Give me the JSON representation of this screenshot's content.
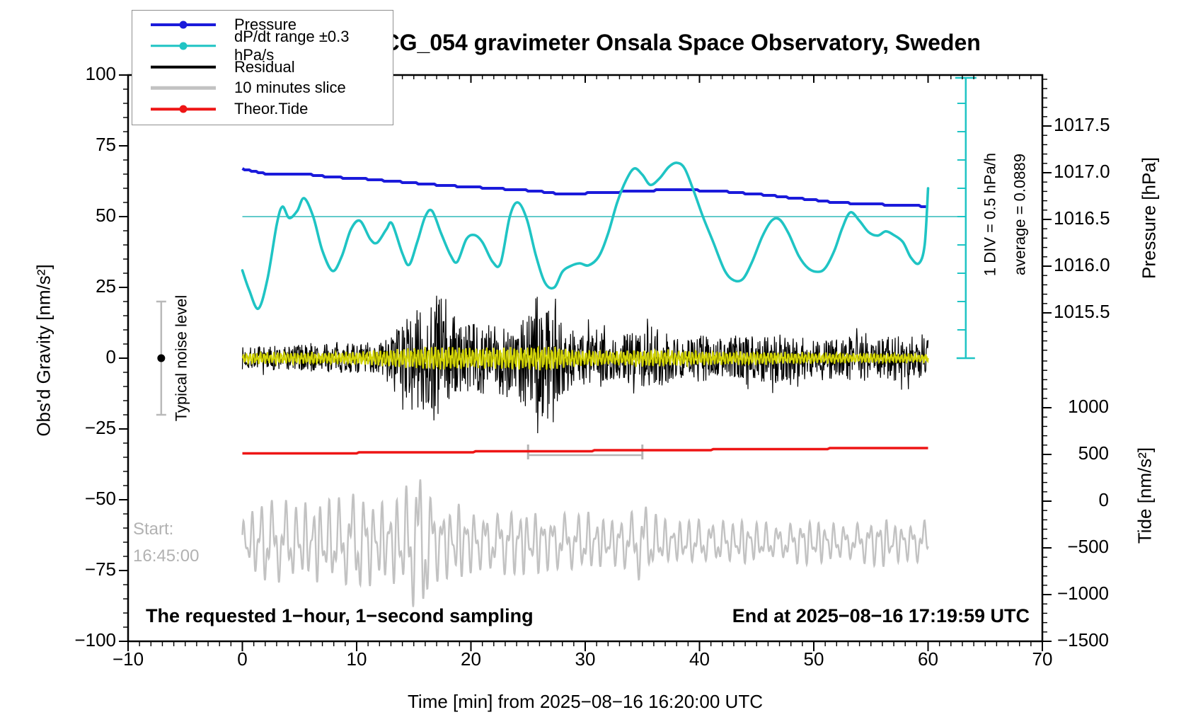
{
  "header": {
    "title": "SCG_054 gravimeter Onsala Space Observatory, Sweden"
  },
  "legend": {
    "items": [
      {
        "label": "Pressure",
        "color": "#1b1bdb",
        "marker": "dot",
        "thick": 4
      },
      {
        "label": "dP/dt range ±0.3 hPa/s",
        "color": "#1fc4c4",
        "marker": "dot",
        "thick": 3.5
      },
      {
        "label": "Residual",
        "color": "#000000",
        "marker": "line",
        "thick": 4.5
      },
      {
        "label": "10 minutes slice",
        "color": "#c2c2c2",
        "marker": "line",
        "thick": 4.5
      },
      {
        "label": "Theor.Tide",
        "color": "#ee1515",
        "marker": "dot",
        "thick": 3.5
      }
    ]
  },
  "annotations": {
    "start_line1": "Start:",
    "start_line2": "16:45:00",
    "sampling_note": "The requested 1−hour, 1−second sampling",
    "end_note": "End at 2025−08−16 17:19:59 UTC",
    "noise_label": "Typical noise level",
    "div_label": "1 DIV = 0.5 hPa/h",
    "average_label": "average = 0.0889"
  },
  "axes": {
    "left": {
      "title": "Obs'd Gravity [nm/s²]",
      "range": [
        -100,
        100
      ],
      "minor_step": 5,
      "ticks": [
        {
          "v": 100,
          "label": "100"
        },
        {
          "v": 75,
          "label": "75"
        },
        {
          "v": 50,
          "label": "50"
        },
        {
          "v": 25,
          "label": "25"
        },
        {
          "v": 0,
          "label": "0"
        },
        {
          "v": -25,
          "label": "−25"
        },
        {
          "v": -50,
          "label": "−50"
        },
        {
          "v": -75,
          "label": "−75"
        },
        {
          "v": -100,
          "label": "−100"
        }
      ]
    },
    "bottom": {
      "title": "Time [min] from 2025−08−16 16:20:00 UTC",
      "range": [
        -10,
        70
      ],
      "minor_step": 1,
      "ticks": [
        {
          "v": -10,
          "label": "−10"
        },
        {
          "v": 0,
          "label": "0"
        },
        {
          "v": 10,
          "label": "10"
        },
        {
          "v": 20,
          "label": "20"
        },
        {
          "v": 30,
          "label": "30"
        },
        {
          "v": 40,
          "label": "40"
        },
        {
          "v": 50,
          "label": "50"
        },
        {
          "v": 60,
          "label": "60"
        },
        {
          "v": 70,
          "label": "70"
        }
      ]
    },
    "pressure": {
      "title": "Pressure [hPa]",
      "minor_step": 0.1,
      "ticks": [
        {
          "v": 1017.5,
          "label": "1017.5"
        },
        {
          "v": 1017.0,
          "label": "1017.0"
        },
        {
          "v": 1016.5,
          "label": "1016.5"
        },
        {
          "v": 1016.0,
          "label": "1016.0"
        },
        {
          "v": 1015.5,
          "label": "1015.5"
        }
      ]
    },
    "tide": {
      "title": "Tide [nm/s²]",
      "minor_step": 100,
      "ticks": [
        {
          "v": 1000,
          "label": "1000"
        },
        {
          "v": 500,
          "label": "500"
        },
        {
          "v": 0,
          "label": "0"
        },
        {
          "v": -500,
          "label": "−500"
        },
        {
          "v": -1000,
          "label": "−1000"
        },
        {
          "v": -1500,
          "label": "−1500"
        }
      ]
    }
  },
  "chart_data": {
    "type": "line",
    "title": "SCG_054 gravimeter Onsala Space Observatory, Sweden",
    "xlabel": "Time [min] from 2025−08−16 16:20:00 UTC",
    "x_range_min": [
      -10,
      70
    ],
    "left_axis_range_nm_s2": [
      -100,
      100
    ],
    "pressure_axis_range_hPa": [
      1015.2,
      1018.0
    ],
    "tide_axis_range_nm_s2": [
      -1500,
      1500
    ],
    "colors": {
      "pressure": "#1b1bdb",
      "dpdt": "#1fc4c4",
      "dpdt_ref": "#63cbcb",
      "residual": "#000000",
      "residual_smooth": "#d2d405",
      "slice": "#c2c2c2",
      "tide": "#ee1515",
      "noise_bar": "#b9b9b9",
      "slice_bracket": "#b5b5b5"
    },
    "series": [
      {
        "name": "Pressure",
        "axis": "pressure_hPa",
        "points": [
          [
            0,
            1017.04
          ],
          [
            2,
            1016.99
          ],
          [
            4,
            1016.98
          ],
          [
            6,
            1016.98
          ],
          [
            8,
            1016.95
          ],
          [
            10,
            1016.94
          ],
          [
            12,
            1016.92
          ],
          [
            14,
            1016.9
          ],
          [
            16,
            1016.88
          ],
          [
            18,
            1016.86
          ],
          [
            20,
            1016.85
          ],
          [
            22,
            1016.83
          ],
          [
            24,
            1016.82
          ],
          [
            26,
            1016.8
          ],
          [
            28,
            1016.77
          ],
          [
            30,
            1016.78
          ],
          [
            32,
            1016.79
          ],
          [
            34,
            1016.8
          ],
          [
            36,
            1016.81
          ],
          [
            38,
            1016.82
          ],
          [
            40,
            1016.81
          ],
          [
            42,
            1016.8
          ],
          [
            44,
            1016.78
          ],
          [
            46,
            1016.76
          ],
          [
            48,
            1016.73
          ],
          [
            50,
            1016.71
          ],
          [
            52,
            1016.68
          ],
          [
            54,
            1016.67
          ],
          [
            56,
            1016.66
          ],
          [
            58,
            1016.65
          ],
          [
            60,
            1016.64
          ]
        ]
      },
      {
        "name": "dP/dt range ±0.3 hPa/s",
        "axis": "display_left_units",
        "note": "reference line at 50 display units = average 0.0889 hPa/h, 1 DIV (10 units) = 0.5 hPa/h",
        "reference_line_display": 50,
        "points": [
          [
            0,
            31
          ],
          [
            0.6,
            24
          ],
          [
            1.4,
            17.5
          ],
          [
            2.2,
            28
          ],
          [
            3,
            47
          ],
          [
            3.5,
            53.5
          ],
          [
            4.1,
            49.5
          ],
          [
            4.8,
            52
          ],
          [
            5.4,
            56.5
          ],
          [
            6.2,
            50
          ],
          [
            7,
            38
          ],
          [
            7.9,
            30.8
          ],
          [
            8.7,
            36
          ],
          [
            9.5,
            45.5
          ],
          [
            10.3,
            48.5
          ],
          [
            11.2,
            42
          ],
          [
            11.8,
            40.8
          ],
          [
            12.6,
            45.5
          ],
          [
            13.1,
            47.5
          ],
          [
            14,
            37
          ],
          [
            14.6,
            33
          ],
          [
            15.3,
            41
          ],
          [
            16,
            50
          ],
          [
            16.6,
            52
          ],
          [
            17.4,
            44
          ],
          [
            18.2,
            36.5
          ],
          [
            18.8,
            34
          ],
          [
            19.6,
            42
          ],
          [
            20.3,
            43.5
          ],
          [
            21,
            41
          ],
          [
            21.9,
            34
          ],
          [
            22.6,
            33.6
          ],
          [
            23.4,
            50
          ],
          [
            24.1,
            55
          ],
          [
            24.9,
            49
          ],
          [
            25.7,
            36
          ],
          [
            26.5,
            26.5
          ],
          [
            27.3,
            25
          ],
          [
            28,
            30.5
          ],
          [
            28.7,
            32.5
          ],
          [
            29.5,
            33.5
          ],
          [
            30.3,
            32.8
          ],
          [
            31.2,
            36
          ],
          [
            32,
            44
          ],
          [
            32.8,
            55
          ],
          [
            33.6,
            63
          ],
          [
            34.3,
            67
          ],
          [
            35,
            64.8
          ],
          [
            35.7,
            61.2
          ],
          [
            36.5,
            63.5
          ],
          [
            37.3,
            67.5
          ],
          [
            38,
            69
          ],
          [
            38.7,
            67
          ],
          [
            39.5,
            59
          ],
          [
            40.3,
            50
          ],
          [
            41.2,
            41
          ],
          [
            42.2,
            31
          ],
          [
            43,
            27.5
          ],
          [
            43.8,
            28
          ],
          [
            44.6,
            34
          ],
          [
            45.5,
            43
          ],
          [
            46.3,
            48.5
          ],
          [
            47,
            49
          ],
          [
            47.8,
            44
          ],
          [
            48.7,
            36
          ],
          [
            49.5,
            31.8
          ],
          [
            50.3,
            30.5
          ],
          [
            51,
            31.8
          ],
          [
            51.8,
            38
          ],
          [
            52.5,
            46
          ],
          [
            53.2,
            51.5
          ],
          [
            54,
            48.5
          ],
          [
            54.8,
            44.5
          ],
          [
            55.6,
            43.3
          ],
          [
            56.3,
            44.8
          ],
          [
            57,
            43.5
          ],
          [
            57.8,
            41
          ],
          [
            58.5,
            35.5
          ],
          [
            59.2,
            33.5
          ],
          [
            59.7,
            40
          ],
          [
            60,
            60
          ]
        ]
      },
      {
        "name": "Residual",
        "axis": "left_nm_s2",
        "baseline": 0,
        "amplitude_envelope": [
          [
            0,
            4
          ],
          [
            3,
            4.5
          ],
          [
            6,
            5
          ],
          [
            9,
            5
          ],
          [
            12,
            6
          ],
          [
            13,
            8
          ],
          [
            14,
            13
          ],
          [
            15,
            16
          ],
          [
            16,
            20
          ],
          [
            17,
            26
          ],
          [
            17.8,
            23
          ],
          [
            18.5,
            15
          ],
          [
            19.5,
            12
          ],
          [
            21,
            13
          ],
          [
            22,
            12
          ],
          [
            23,
            14
          ],
          [
            24,
            15
          ],
          [
            25,
            18
          ],
          [
            25.8,
            22
          ],
          [
            26.5,
            20
          ],
          [
            27.3,
            25
          ],
          [
            28,
            13
          ],
          [
            29,
            10
          ],
          [
            30,
            11
          ],
          [
            31,
            9
          ],
          [
            32.5,
            8
          ],
          [
            34,
            9
          ],
          [
            35,
            10
          ],
          [
            36,
            12
          ],
          [
            37,
            9
          ],
          [
            38,
            8
          ],
          [
            40,
            8.5
          ],
          [
            41.5,
            7
          ],
          [
            43,
            8
          ],
          [
            45,
            8
          ],
          [
            46.5,
            9
          ],
          [
            48,
            8
          ],
          [
            50,
            8
          ],
          [
            52,
            7.5
          ],
          [
            54,
            8
          ],
          [
            56,
            8
          ],
          [
            58,
            8
          ],
          [
            60,
            7
          ]
        ]
      },
      {
        "name": "Residual smoothed (yellow)",
        "axis": "left_nm_s2",
        "baseline": 0,
        "amplitude_envelope": [
          [
            0,
            1.5
          ],
          [
            10,
            1.8
          ],
          [
            13,
            2.5
          ],
          [
            15,
            3
          ],
          [
            17,
            3.5
          ],
          [
            20,
            3
          ],
          [
            24,
            3.2
          ],
          [
            27,
            3.5
          ],
          [
            29,
            2.5
          ],
          [
            32,
            2
          ],
          [
            36,
            2.5
          ],
          [
            40,
            2
          ],
          [
            45,
            1.8
          ],
          [
            50,
            1.5
          ],
          [
            55,
            1.3
          ],
          [
            60,
            1.2
          ]
        ]
      },
      {
        "name": "Theor.Tide",
        "axis": "tide_nm_s2",
        "points": [
          [
            0,
            506
          ],
          [
            10,
            517
          ],
          [
            20,
            528
          ],
          [
            30,
            539
          ],
          [
            40,
            550
          ],
          [
            50,
            561
          ],
          [
            60,
            572
          ]
        ],
        "slice_window_markers_min": [
          25,
          35
        ]
      },
      {
        "name": "10 minutes slice",
        "axis": "left_nm_s2",
        "baseline": -65,
        "amplitude_envelope": [
          [
            0,
            8
          ],
          [
            1,
            10
          ],
          [
            2,
            14
          ],
          [
            3,
            12
          ],
          [
            4,
            13
          ],
          [
            5,
            11
          ],
          [
            6,
            13
          ],
          [
            7,
            12
          ],
          [
            8,
            14
          ],
          [
            9,
            13
          ],
          [
            10,
            17
          ],
          [
            11,
            14
          ],
          [
            12,
            12
          ],
          [
            13,
            13
          ],
          [
            14,
            15
          ],
          [
            15,
            22
          ],
          [
            15.8,
            25
          ],
          [
            16.5,
            16
          ],
          [
            17,
            12
          ],
          [
            18,
            11
          ],
          [
            19,
            12
          ],
          [
            20,
            10
          ],
          [
            21,
            9
          ],
          [
            22,
            9
          ],
          [
            23,
            10
          ],
          [
            24,
            11
          ],
          [
            25,
            9
          ],
          [
            26,
            10
          ],
          [
            27,
            8
          ],
          [
            28,
            9
          ],
          [
            29,
            8
          ],
          [
            30,
            10
          ],
          [
            31,
            8
          ],
          [
            32,
            7
          ],
          [
            33,
            8
          ],
          [
            34,
            9
          ],
          [
            35,
            13
          ],
          [
            36,
            9
          ],
          [
            37,
            7
          ],
          [
            38,
            6
          ],
          [
            39,
            7
          ],
          [
            40,
            7
          ],
          [
            41,
            6
          ],
          [
            42,
            7
          ],
          [
            43,
            6
          ],
          [
            44,
            7
          ],
          [
            45,
            6
          ],
          [
            46,
            6
          ],
          [
            47,
            5
          ],
          [
            48,
            6
          ],
          [
            49,
            7
          ],
          [
            50,
            7
          ],
          [
            51,
            6
          ],
          [
            52,
            6
          ],
          [
            53,
            5
          ],
          [
            54,
            6
          ],
          [
            55,
            7
          ],
          [
            56,
            8
          ],
          [
            57,
            6
          ],
          [
            58,
            6
          ],
          [
            59,
            6
          ],
          [
            60,
            7
          ]
        ]
      }
    ],
    "scale_bar": {
      "x_display_min": 63.3,
      "from_display": 0,
      "to_display": 100,
      "tick_step_display": 10,
      "label": "1 DIV = 0.5 hPa/h",
      "average_label": "average = 0.0889"
    },
    "noise_marker": {
      "x_min": -7.1,
      "center_nm_s2": 0,
      "half_range_nm_s2": 20,
      "label": "Typical noise level"
    }
  }
}
